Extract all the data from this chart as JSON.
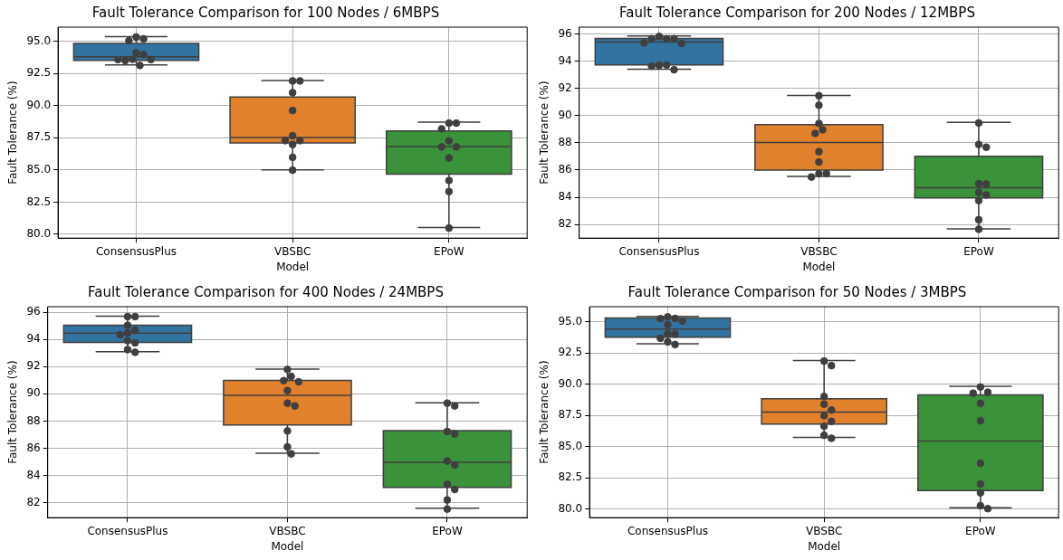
{
  "chart_data": [
    {
      "type": "box",
      "title": "Fault Tolerance Comparison for 100 Nodes / 6MBPS",
      "xlabel": "Model",
      "ylabel": "Fault Tolerance (%)",
      "categories": [
        "ConsensusPlus",
        "VBSBC",
        "EPoW"
      ],
      "colors": [
        "#3274a1",
        "#e1812c",
        "#3a923a"
      ],
      "grid": true,
      "ylim": [
        79.7,
        96.1
      ],
      "yticks": [
        {
          "value": 80,
          "label": "80.0"
        },
        {
          "value": 82.5,
          "label": "82.5"
        },
        {
          "value": 85,
          "label": "85.0"
        },
        {
          "value": 87.5,
          "label": "87.5"
        },
        {
          "value": 90,
          "label": "90.0"
        },
        {
          "value": 92.5,
          "label": "92.5"
        },
        {
          "value": 95,
          "label": "95.0"
        }
      ],
      "boxes": [
        {
          "low": 93.16,
          "q1": 93.51,
          "median": 93.79,
          "q3": 94.84,
          "high": 95.37
        },
        {
          "low": 85.0,
          "q1": 87.1,
          "median": 87.52,
          "q3": 90.66,
          "high": 91.95
        },
        {
          "low": 80.52,
          "q1": 84.67,
          "median": 86.82,
          "q3": 88.03,
          "high": 88.71
        }
      ],
      "series": [
        {
          "type": "scatter",
          "color": "#3f3f3f",
          "x": [
            "ConsensusPlus",
            "ConsensusPlus",
            "ConsensusPlus",
            "ConsensusPlus",
            "ConsensusPlus",
            "ConsensusPlus",
            "ConsensusPlus",
            "ConsensusPlus",
            "ConsensusPlus",
            "ConsensusPlus",
            "VBSBC",
            "VBSBC",
            "VBSBC",
            "VBSBC",
            "VBSBC",
            "VBSBC",
            "VBSBC",
            "VBSBC",
            "VBSBC",
            "VBSBC",
            "EPoW",
            "EPoW",
            "EPoW",
            "EPoW",
            "EPoW",
            "EPoW",
            "EPoW",
            "EPoW",
            "EPoW",
            "EPoW"
          ],
          "values": [
            95.33,
            95.19,
            95.05,
            94.11,
            93.97,
            93.6,
            93.5,
            93.58,
            93.58,
            93.12,
            91.92,
            91.92,
            91.01,
            89.62,
            87.66,
            87.28,
            87.28,
            86.98,
            85.98,
            84.98,
            88.64,
            88.64,
            88.19,
            87.26,
            86.79,
            86.79,
            85.93,
            84.18,
            83.32,
            80.48
          ]
        }
      ]
    },
    {
      "type": "box",
      "title": "Fault Tolerance Comparison for 200 Nodes / 12MBPS",
      "xlabel": "Model",
      "ylabel": "Fault Tolerance (%)",
      "categories": [
        "ConsensusPlus",
        "VBSBC",
        "EPoW"
      ],
      "colors": [
        "#3274a1",
        "#e1812c",
        "#3a923a"
      ],
      "grid": true,
      "ylim": [
        81.0,
        96.5
      ],
      "yticks": [
        82,
        84,
        86,
        88,
        90,
        92,
        94,
        96
      ],
      "boxes": [
        {
          "low": 93.41,
          "q1": 93.72,
          "median": 95.41,
          "q3": 95.67,
          "high": 95.85
        },
        {
          "low": 85.53,
          "q1": 86.0,
          "median": 88.03,
          "q3": 89.33,
          "high": 91.48
        },
        {
          "low": 81.67,
          "q1": 83.95,
          "median": 84.7,
          "q3": 87.02,
          "high": 89.5
        }
      ],
      "series": [
        {
          "type": "scatter",
          "color": "#3f3f3f",
          "x": [
            "ConsensusPlus",
            "ConsensusPlus",
            "ConsensusPlus",
            "ConsensusPlus",
            "ConsensusPlus",
            "ConsensusPlus",
            "ConsensusPlus",
            "ConsensusPlus",
            "ConsensusPlus",
            "ConsensusPlus",
            "VBSBC",
            "VBSBC",
            "VBSBC",
            "VBSBC",
            "VBSBC",
            "VBSBC",
            "VBSBC",
            "VBSBC",
            "VBSBC",
            "VBSBC",
            "EPoW",
            "EPoW",
            "EPoW",
            "EPoW",
            "EPoW",
            "EPoW",
            "EPoW",
            "EPoW",
            "EPoW",
            "EPoW"
          ],
          "values": [
            95.82,
            95.65,
            95.65,
            95.65,
            95.34,
            95.3,
            93.7,
            93.72,
            93.63,
            93.37,
            91.46,
            90.76,
            89.42,
            88.96,
            88.69,
            87.35,
            86.59,
            85.73,
            85.75,
            85.49,
            89.46,
            87.88,
            87.68,
            85.0,
            84.98,
            84.35,
            84.17,
            83.76,
            82.35,
            81.65
          ]
        }
      ]
    },
    {
      "type": "box",
      "title": "Fault Tolerance Comparison for 400 Nodes / 24MBPS",
      "xlabel": "Model",
      "ylabel": "Fault Tolerance (%)",
      "categories": [
        "ConsensusPlus",
        "VBSBC",
        "EPoW"
      ],
      "colors": [
        "#3274a1",
        "#e1812c",
        "#3a923a"
      ],
      "grid": true,
      "ylim": [
        80.9,
        96.4
      ],
      "yticks": [
        82,
        84,
        86,
        88,
        90,
        92,
        94,
        96
      ],
      "boxes": [
        {
          "low": 93.1,
          "q1": 93.78,
          "median": 94.45,
          "q3": 95.03,
          "high": 95.71
        },
        {
          "low": 85.63,
          "q1": 87.71,
          "median": 89.89,
          "q3": 90.99,
          "high": 91.81
        },
        {
          "low": 81.6,
          "q1": 83.13,
          "median": 84.97,
          "q3": 87.29,
          "high": 89.33
        }
      ],
      "series": [
        {
          "type": "scatter",
          "color": "#3f3f3f",
          "x": [
            "ConsensusPlus",
            "ConsensusPlus",
            "ConsensusPlus",
            "ConsensusPlus",
            "ConsensusPlus",
            "ConsensusPlus",
            "ConsensusPlus",
            "ConsensusPlus",
            "ConsensusPlus",
            "ConsensusPlus",
            "VBSBC",
            "VBSBC",
            "VBSBC",
            "VBSBC",
            "VBSBC",
            "VBSBC",
            "VBSBC",
            "VBSBC",
            "VBSBC",
            "VBSBC",
            "EPoW",
            "EPoW",
            "EPoW",
            "EPoW",
            "EPoW",
            "EPoW",
            "EPoW",
            "EPoW",
            "EPoW",
            "EPoW"
          ],
          "values": [
            95.67,
            95.67,
            95.03,
            94.67,
            94.47,
            94.34,
            93.9,
            93.74,
            93.25,
            93.05,
            91.79,
            91.28,
            90.97,
            90.88,
            90.24,
            89.31,
            89.11,
            87.27,
            86.1,
            85.59,
            89.31,
            89.11,
            87.23,
            87.05,
            85.06,
            84.77,
            83.35,
            82.97,
            82.2,
            81.53
          ]
        }
      ]
    },
    {
      "type": "box",
      "title": "Fault Tolerance Comparison for 50 Nodes / 3MBPS",
      "xlabel": "Model",
      "ylabel": "Fault Tolerance (%)",
      "categories": [
        "ConsensusPlus",
        "VBSBC",
        "EPoW"
      ],
      "colors": [
        "#3274a1",
        "#e1812c",
        "#3a923a"
      ],
      "grid": true,
      "ylim": [
        79.3,
        96.2
      ],
      "yticks": [
        {
          "value": 80,
          "label": "80.0"
        },
        {
          "value": 82.5,
          "label": "82.5"
        },
        {
          "value": 85,
          "label": "85.0"
        },
        {
          "value": 87.5,
          "label": "87.5"
        },
        {
          "value": 90,
          "label": "90.0"
        },
        {
          "value": 92.5,
          "label": "92.5"
        },
        {
          "value": 95,
          "label": "95.0"
        }
      ],
      "boxes": [
        {
          "low": 93.22,
          "q1": 93.76,
          "median": 94.41,
          "q3": 95.29,
          "high": 95.43
        },
        {
          "low": 85.73,
          "q1": 86.8,
          "median": 87.75,
          "q3": 88.82,
          "high": 91.89
        },
        {
          "low": 80.1,
          "q1": 81.47,
          "median": 85.44,
          "q3": 89.13,
          "high": 89.82
        }
      ],
      "series": [
        {
          "type": "scatter",
          "color": "#3f3f3f",
          "x": [
            "ConsensusPlus",
            "ConsensusPlus",
            "ConsensusPlus",
            "ConsensusPlus",
            "ConsensusPlus",
            "ConsensusPlus",
            "ConsensusPlus",
            "ConsensusPlus",
            "ConsensusPlus",
            "ConsensusPlus",
            "VBSBC",
            "VBSBC",
            "VBSBC",
            "VBSBC",
            "VBSBC",
            "VBSBC",
            "VBSBC",
            "VBSBC",
            "VBSBC",
            "VBSBC",
            "EPoW",
            "EPoW",
            "EPoW",
            "EPoW",
            "EPoW",
            "EPoW",
            "EPoW",
            "EPoW",
            "EPoW",
            "EPoW"
          ],
          "values": [
            95.38,
            95.26,
            95.24,
            95.05,
            94.76,
            94.03,
            94.0,
            93.67,
            93.38,
            93.17,
            91.84,
            91.48,
            89.01,
            88.39,
            87.92,
            87.47,
            87.01,
            86.63,
            85.9,
            85.66,
            89.77,
            89.34,
            89.27,
            88.46,
            87.06,
            83.66,
            82.0,
            81.29,
            80.26,
            80.02
          ]
        }
      ]
    }
  ]
}
